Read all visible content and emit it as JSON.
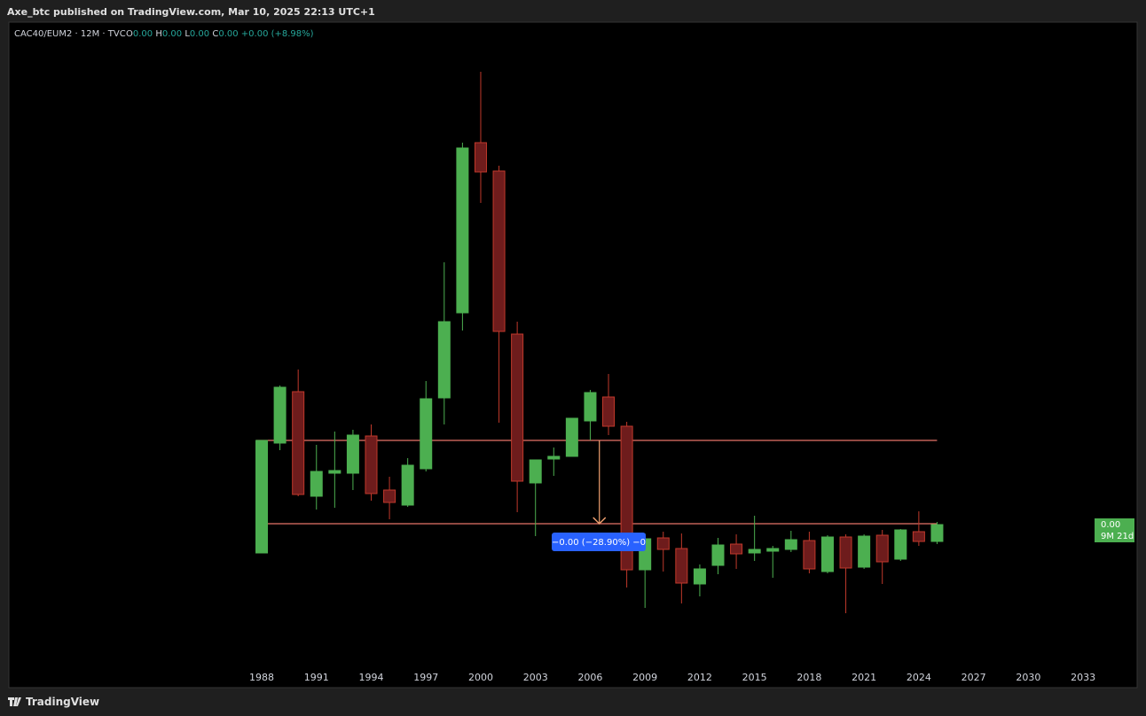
{
  "header": {
    "published": "Axe_btc published on TradingView.com, Mar 10, 2025 22:13 UTC+1"
  },
  "legend": {
    "symbol": "CAC40/EUM2 · 12M · TVC",
    "ohlc": [
      {
        "label": "O",
        "value": "0.00"
      },
      {
        "label": "H",
        "value": "0.00"
      },
      {
        "label": "L",
        "value": "0.00"
      },
      {
        "label": "C",
        "value": "0.00"
      }
    ],
    "change": "+0.00 (+8.98%)"
  },
  "chart_data": {
    "type": "candlestick",
    "x": [
      1988,
      1989,
      1990,
      1991,
      1992,
      1993,
      1994,
      1995,
      1996,
      1997,
      1998,
      1999,
      2000,
      2001,
      2002,
      2003,
      2004,
      2005,
      2006,
      2007,
      2008,
      2009,
      2010,
      2011,
      2012,
      2013,
      2014,
      2015,
      2016,
      2017,
      2018,
      2019,
      2020,
      2021,
      2022,
      2023,
      2024,
      2025
    ],
    "open": [
      1.98,
      3.22,
      3.8,
      2.62,
      2.88,
      2.88,
      3.3,
      2.69,
      2.52,
      2.93,
      3.73,
      4.69,
      6.61,
      6.29,
      4.45,
      2.77,
      3.04,
      3.07,
      3.47,
      3.74,
      3.41,
      1.79,
      2.15,
      2.03,
      1.63,
      1.84,
      2.08,
      1.98,
      2.0,
      2.02,
      2.12,
      1.77,
      2.16,
      1.82,
      2.18,
      1.91,
      2.22,
      2.11
    ],
    "high": [
      3.25,
      3.87,
      4.05,
      3.2,
      3.35,
      3.37,
      3.43,
      2.84,
      3.05,
      3.92,
      5.26,
      6.61,
      7.41,
      6.35,
      4.59,
      3.03,
      3.17,
      3.5,
      3.82,
      4.0,
      3.46,
      2.2,
      2.22,
      2.2,
      1.85,
      2.15,
      2.19,
      2.4,
      2.06,
      2.23,
      2.22,
      2.18,
      2.19,
      2.19,
      2.24,
      2.25,
      2.45,
      2.33
    ],
    "low": [
      1.98,
      3.14,
      2.62,
      2.47,
      2.49,
      2.69,
      2.57,
      2.36,
      2.5,
      2.9,
      3.43,
      4.49,
      5.93,
      3.45,
      2.44,
      2.17,
      2.85,
      3.07,
      3.25,
      3.31,
      1.59,
      1.36,
      1.77,
      1.41,
      1.49,
      1.74,
      1.8,
      1.89,
      1.7,
      1.99,
      1.75,
      1.75,
      1.3,
      1.8,
      1.63,
      1.89,
      2.06,
      2.08
    ],
    "close": [
      3.25,
      3.85,
      2.64,
      2.9,
      2.91,
      3.31,
      2.65,
      2.55,
      2.97,
      3.72,
      4.59,
      6.55,
      6.28,
      4.48,
      2.79,
      3.03,
      3.07,
      3.5,
      3.79,
      3.41,
      1.79,
      2.14,
      2.02,
      1.64,
      1.8,
      2.07,
      1.97,
      2.02,
      2.03,
      2.13,
      1.8,
      2.16,
      1.81,
      2.17,
      1.88,
      2.24,
      2.11,
      2.3
    ],
    "up_color": "#4caf50",
    "down_color": "#6e1c1c",
    "down_border": "#c0392b",
    "xlim": [
      1974.15,
      2035.96
    ],
    "ylim": [
      0.74,
      7.97
    ],
    "xticks": [
      1988,
      1991,
      1994,
      1997,
      2000,
      2003,
      2006,
      2009,
      2012,
      2015,
      2018,
      2021,
      2024,
      2027,
      2030,
      2033
    ],
    "hlines": [
      {
        "value": 3.25,
        "color": "#e57368"
      },
      {
        "value": 2.31,
        "color": "#e57368"
      }
    ],
    "measure": {
      "label": "−0.00 (−28.90%) −0",
      "color": "#2962ff"
    },
    "price_label": {
      "price": "0.00",
      "countdown": "9M 21d"
    }
  },
  "footer": {
    "brand": "TradingView"
  }
}
